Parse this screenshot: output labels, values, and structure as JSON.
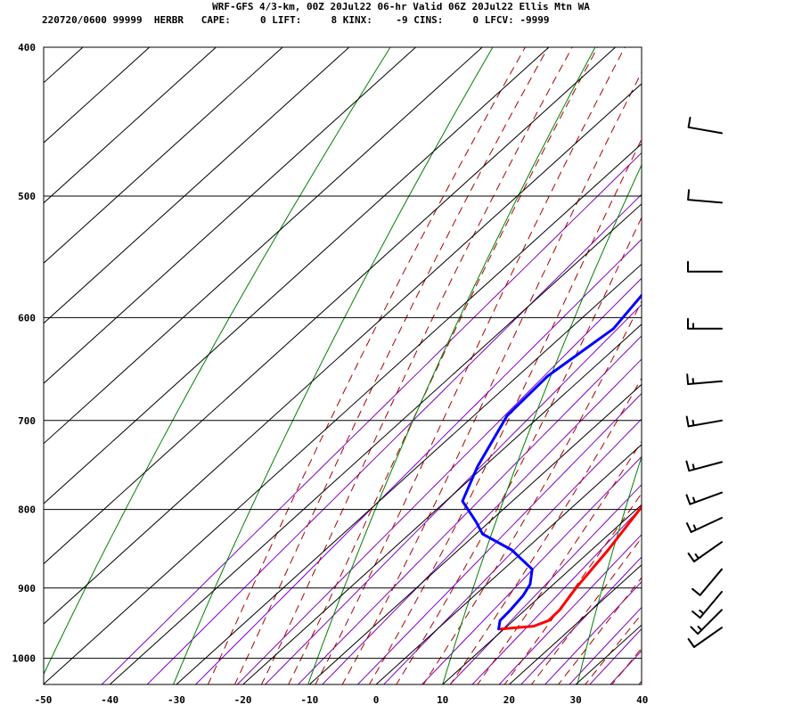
{
  "header": {
    "line1": "WRF-GFS 4/3-km, 00Z 20Jul22 06-hr Valid 06Z 20Jul22 Ellis Mtn WA",
    "line2": "220720/0600 99999  HERBR   CAPE:     0 LIFT:     8 KINX:    -9 CINS:     0 LFCV: -9999"
  },
  "colors": {
    "temperature": "#ff0000",
    "dewpoint": "#0000ff",
    "isotherm": "#000000",
    "dry_adiabat": "#008000",
    "moist_adiabat": "#aa0000",
    "mixing_ratio": "#8000c0"
  },
  "chart_data": {
    "type": "skew-t",
    "x_ticks": [
      "-50",
      "-40",
      "-30",
      "-20",
      "-10",
      "0",
      "10",
      "20",
      "30",
      "40"
    ],
    "x_tick_values": [
      -50,
      -40,
      -30,
      -20,
      -10,
      0,
      10,
      20,
      30,
      40
    ],
    "y_ticks": [
      "400",
      "500",
      "600",
      "700",
      "800",
      "900",
      "1000"
    ],
    "y_tick_values": [
      400,
      500,
      600,
      700,
      800,
      900,
      1000
    ],
    "pressure_range_hpa": [
      400,
      1040
    ],
    "grid": true,
    "series": [
      {
        "key": "temperature",
        "points": [
          {
            "p": 957,
            "t": 9.5
          },
          {
            "p": 953,
            "t": 14.0
          },
          {
            "p": 945,
            "t": 15.3
          },
          {
            "p": 930,
            "t": 15.2
          },
          {
            "p": 900,
            "t": 14.0
          },
          {
            "p": 850,
            "t": 12.5
          },
          {
            "p": 800,
            "t": 10.5
          },
          {
            "p": 750,
            "t": 7.8
          },
          {
            "p": 700,
            "t": 4.5
          },
          {
            "p": 650,
            "t": 1.3
          },
          {
            "p": 600,
            "t": -2.8
          },
          {
            "p": 550,
            "t": -8.0
          },
          {
            "p": 500,
            "t": -12.8
          },
          {
            "p": 455,
            "t": -17.0
          }
        ]
      },
      {
        "key": "dewpoint",
        "points": [
          {
            "p": 957,
            "t": 9.2
          },
          {
            "p": 945,
            "t": 8.0
          },
          {
            "p": 930,
            "t": 7.8
          },
          {
            "p": 910,
            "t": 7.3
          },
          {
            "p": 895,
            "t": 6.5
          },
          {
            "p": 875,
            "t": 4.3
          },
          {
            "p": 850,
            "t": -2.0
          },
          {
            "p": 830,
            "t": -9.0
          },
          {
            "p": 815,
            "t": -12.0
          },
          {
            "p": 790,
            "t": -17.5
          },
          {
            "p": 750,
            "t": -21.0
          },
          {
            "p": 695,
            "t": -25.0
          },
          {
            "p": 655,
            "t": -25.5
          },
          {
            "p": 610,
            "t": -23.5
          },
          {
            "p": 565,
            "t": -25.5
          },
          {
            "p": 510,
            "t": -34.0
          },
          {
            "p": 455,
            "t": -41.0
          }
        ]
      }
    ],
    "wind_barbs": [
      {
        "p": 455,
        "dir": 280,
        "spd": 10
      },
      {
        "p": 505,
        "dir": 275,
        "spd": 10
      },
      {
        "p": 560,
        "dir": 270,
        "spd": 10
      },
      {
        "p": 610,
        "dir": 270,
        "spd": 15
      },
      {
        "p": 660,
        "dir": 265,
        "spd": 15
      },
      {
        "p": 700,
        "dir": 260,
        "spd": 15
      },
      {
        "p": 745,
        "dir": 255,
        "spd": 15
      },
      {
        "p": 780,
        "dir": 250,
        "spd": 15
      },
      {
        "p": 810,
        "dir": 245,
        "spd": 15
      },
      {
        "p": 840,
        "dir": 235,
        "spd": 15
      },
      {
        "p": 875,
        "dir": 220,
        "spd": 10
      },
      {
        "p": 905,
        "dir": 220,
        "spd": 15
      },
      {
        "p": 930,
        "dir": 225,
        "spd": 15
      },
      {
        "p": 955,
        "dir": 235,
        "spd": 10
      }
    ]
  }
}
